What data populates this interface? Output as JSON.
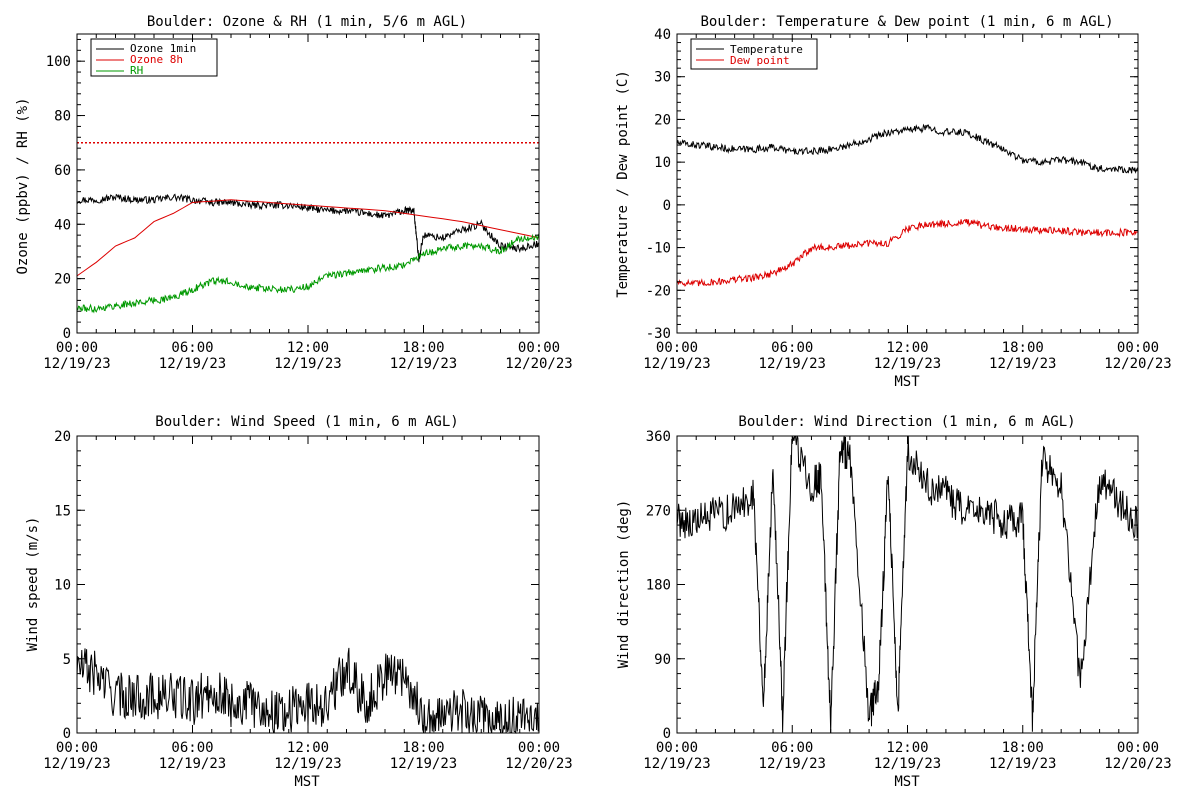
{
  "chart_data": [
    {
      "type": "line",
      "title": "Boulder: Ozone & RH (1 min, 5/6 m AGL)",
      "xlabel": "",
      "ylabel": "Ozone (ppbv) / RH (%)",
      "xlim": [
        "12/19/23 00:00",
        "12/20/23 00:00"
      ],
      "ylim": [
        0,
        110
      ],
      "y_ticks": [
        0,
        20,
        40,
        60,
        80,
        100
      ],
      "x_tick_labels": [
        [
          "00:00",
          "12/19/23"
        ],
        [
          "06:00",
          "12/19/23"
        ],
        [
          "12:00",
          "12/19/23"
        ],
        [
          "18:00",
          "12/19/23"
        ],
        [
          "00:00",
          "12/20/23"
        ]
      ],
      "legend": {
        "placement": "top-left",
        "entries": [
          "Ozone 1min",
          "Ozone 8h",
          "RH"
        ]
      },
      "reference_line": {
        "y": 70,
        "style": "dotted",
        "color": "#dd0000"
      },
      "series": [
        {
          "name": "Ozone 1min",
          "color": "#000000",
          "x": [
            "12/19/23 00:00",
            "12/19/23 01:00",
            "12/19/23 02:00",
            "12/19/23 03:00",
            "12/19/23 04:00",
            "12/19/23 05:00",
            "12/19/23 06:00",
            "12/19/23 07:00",
            "12/19/23 08:00",
            "12/19/23 09:00",
            "12/19/23 10:00",
            "12/19/23 11:00",
            "12/19/23 12:00",
            "12/19/23 13:00",
            "12/19/23 14:00",
            "12/19/23 15:00",
            "12/19/23 16:00",
            "12/19/23 17:00",
            "12/19/23 17:30",
            "12/19/23 17:45",
            "12/19/23 18:00",
            "12/19/23 19:00",
            "12/19/23 20:00",
            "12/19/23 21:00",
            "12/19/23 22:00",
            "12/19/23 23:00",
            "12/20/23 00:00"
          ],
          "y": [
            49,
            49,
            50,
            49,
            49,
            50,
            49,
            48,
            48,
            47,
            47,
            47,
            46,
            45,
            45,
            44,
            43,
            45,
            45,
            27,
            36,
            35,
            38,
            40,
            32,
            31,
            33
          ]
        },
        {
          "name": "Ozone 8h",
          "color": "#dd0000",
          "x": [
            "12/19/23 00:00",
            "12/19/23 01:00",
            "12/19/23 02:00",
            "12/19/23 03:00",
            "12/19/23 04:00",
            "12/19/23 05:00",
            "12/19/23 06:00",
            "12/19/23 08:00",
            "12/19/23 10:00",
            "12/19/23 12:00",
            "12/19/23 14:00",
            "12/19/23 16:00",
            "12/19/23 18:00",
            "12/19/23 20:00",
            "12/19/23 22:00",
            "12/20/23 00:00"
          ],
          "y": [
            21,
            26,
            32,
            35,
            41,
            44,
            48,
            49,
            48,
            47,
            46,
            45,
            43,
            41,
            38,
            35
          ]
        },
        {
          "name": "RH",
          "color": "#009900",
          "x": [
            "12/19/23 00:00",
            "12/19/23 01:00",
            "12/19/23 02:00",
            "12/19/23 03:00",
            "12/19/23 04:00",
            "12/19/23 05:00",
            "12/19/23 06:00",
            "12/19/23 07:00",
            "12/19/23 08:00",
            "12/19/23 09:00",
            "12/19/23 10:00",
            "12/19/23 11:00",
            "12/19/23 12:00",
            "12/19/23 13:00",
            "12/19/23 14:00",
            "12/19/23 15:00",
            "12/19/23 16:00",
            "12/19/23 17:00",
            "12/19/23 18:00",
            "12/19/23 19:00",
            "12/19/23 20:00",
            "12/19/23 21:00",
            "12/19/23 22:00",
            "12/19/23 23:00",
            "12/20/23 00:00"
          ],
          "y": [
            9,
            9,
            10,
            11,
            12,
            13,
            16,
            19,
            19,
            17,
            16,
            16,
            17,
            21,
            22,
            23,
            24,
            25,
            29,
            31,
            32,
            32,
            30,
            35,
            35
          ]
        }
      ]
    },
    {
      "type": "line",
      "title": "Boulder: Temperature & Dew point (1 min, 6 m AGL)",
      "xlabel": "MST",
      "ylabel": "Temperature / Dew point (C)",
      "xlim": [
        "12/19/23 00:00",
        "12/20/23 00:00"
      ],
      "ylim": [
        -30,
        40
      ],
      "y_ticks": [
        -30,
        -20,
        -10,
        0,
        10,
        20,
        30,
        40
      ],
      "x_tick_labels": [
        [
          "00:00",
          "12/19/23"
        ],
        [
          "06:00",
          "12/19/23"
        ],
        [
          "12:00",
          "12/19/23"
        ],
        [
          "18:00",
          "12/19/23"
        ],
        [
          "00:00",
          "12/20/23"
        ]
      ],
      "legend": {
        "placement": "top-left",
        "entries": [
          "Temperature",
          "Dew point"
        ]
      },
      "series": [
        {
          "name": "Temperature",
          "color": "#000000",
          "x": [
            "12/19/23 00:00",
            "12/19/23 01:00",
            "12/19/23 02:00",
            "12/19/23 03:00",
            "12/19/23 04:00",
            "12/19/23 05:00",
            "12/19/23 06:00",
            "12/19/23 07:00",
            "12/19/23 08:00",
            "12/19/23 09:00",
            "12/19/23 10:00",
            "12/19/23 11:00",
            "12/19/23 12:00",
            "12/19/23 13:00",
            "12/19/23 14:00",
            "12/19/23 15:00",
            "12/19/23 16:00",
            "12/19/23 17:00",
            "12/19/23 18:00",
            "12/19/23 19:00",
            "12/19/23 20:00",
            "12/19/23 21:00",
            "12/19/23 22:00",
            "12/19/23 23:00",
            "12/20/23 00:00"
          ],
          "y": [
            14.5,
            14,
            13.5,
            13,
            13,
            13.5,
            12.5,
            12.5,
            13,
            14,
            15.5,
            17,
            17.5,
            18,
            17,
            17,
            15,
            13,
            10.5,
            10,
            10.5,
            10,
            8.5,
            8.5,
            8
          ]
        },
        {
          "name": "Dew point",
          "color": "#dd0000",
          "x": [
            "12/19/23 00:00",
            "12/19/23 01:00",
            "12/19/23 02:00",
            "12/19/23 03:00",
            "12/19/23 04:00",
            "12/19/23 05:00",
            "12/19/23 06:00",
            "12/19/23 07:00",
            "12/19/23 08:00",
            "12/19/23 09:00",
            "12/19/23 10:00",
            "12/19/23 11:00",
            "12/19/23 12:00",
            "12/19/23 13:00",
            "12/19/23 14:00",
            "12/19/23 15:00",
            "12/19/23 16:00",
            "12/19/23 17:00",
            "12/19/23 18:00",
            "12/19/23 19:00",
            "12/19/23 20:00",
            "12/19/23 21:00",
            "12/19/23 22:00",
            "12/19/23 23:00",
            "12/20/23 00:00"
          ],
          "y": [
            -18,
            -18.5,
            -18,
            -17.5,
            -17,
            -16,
            -14,
            -10,
            -10,
            -9.5,
            -9,
            -9,
            -5.5,
            -4.5,
            -4.5,
            -4,
            -5,
            -5.5,
            -5.5,
            -6,
            -6,
            -6.5,
            -6.5,
            -6.5,
            -6.5
          ]
        }
      ]
    },
    {
      "type": "line",
      "title": "Boulder: Wind Speed (1 min, 6 m AGL)",
      "xlabel": "MST",
      "ylabel": "Wind speed (m/s)",
      "xlim": [
        "12/19/23 00:00",
        "12/20/23 00:00"
      ],
      "ylim": [
        0,
        20
      ],
      "y_ticks": [
        0,
        5,
        10,
        15,
        20
      ],
      "x_tick_labels": [
        [
          "00:00",
          "12/19/23"
        ],
        [
          "06:00",
          "12/19/23"
        ],
        [
          "12:00",
          "12/19/23"
        ],
        [
          "18:00",
          "12/19/23"
        ],
        [
          "00:00",
          "12/20/23"
        ]
      ],
      "series": [
        {
          "color": "#000000",
          "x": [
            "12/19/23 00:00",
            "12/19/23 01:00",
            "12/19/23 02:00",
            "12/19/23 03:00",
            "12/19/23 04:00",
            "12/19/23 05:00",
            "12/19/23 06:00",
            "12/19/23 07:00",
            "12/19/23 08:00",
            "12/19/23 09:00",
            "12/19/23 10:00",
            "12/19/23 11:00",
            "12/19/23 12:00",
            "12/19/23 13:00",
            "12/19/23 14:00",
            "12/19/23 15:00",
            "12/19/23 16:00",
            "12/19/23 17:00",
            "12/19/23 18:00",
            "12/19/23 19:00",
            "12/19/23 20:00",
            "12/19/23 21:00",
            "12/19/23 22:00",
            "12/19/23 23:00",
            "12/20/23 00:00"
          ],
          "y": [
            4.5,
            4,
            2.5,
            2.5,
            2.5,
            2.5,
            2,
            3,
            2,
            2,
            1.5,
            1.5,
            2,
            2,
            4.5,
            2,
            4,
            4,
            1,
            1,
            1.5,
            1,
            0.5,
            1,
            0.5
          ]
        }
      ]
    },
    {
      "type": "line",
      "title": "Boulder: Wind Direction (1 min, 6 m AGL)",
      "xlabel": "MST",
      "ylabel": "Wind direction (deg)",
      "xlim": [
        "12/19/23 00:00",
        "12/20/23 00:00"
      ],
      "ylim": [
        0,
        360
      ],
      "y_ticks": [
        0,
        90,
        180,
        270,
        360
      ],
      "x_tick_labels": [
        [
          "00:00",
          "12/19/23"
        ],
        [
          "06:00",
          "12/19/23"
        ],
        [
          "12:00",
          "12/19/23"
        ],
        [
          "18:00",
          "12/19/23"
        ],
        [
          "00:00",
          "12/20/23"
        ]
      ],
      "series": [
        {
          "color": "#000000",
          "x": [
            "12/19/23 00:00",
            "12/19/23 01:00",
            "12/19/23 02:00",
            "12/19/23 03:00",
            "12/19/23 04:00",
            "12/19/23 04:30",
            "12/19/23 05:00",
            "12/19/23 05:30",
            "12/19/23 06:00",
            "12/19/23 07:00",
            "12/19/23 07:30",
            "12/19/23 08:00",
            "12/19/23 08:30",
            "12/19/23 09:00",
            "12/19/23 10:00",
            "12/19/23 10:30",
            "12/19/23 11:00",
            "12/19/23 11:30",
            "12/19/23 12:00",
            "12/19/23 13:00",
            "12/19/23 14:00",
            "12/19/23 15:00",
            "12/19/23 16:00",
            "12/19/23 17:00",
            "12/19/23 18:00",
            "12/19/23 18:30",
            "12/19/23 19:00",
            "12/19/23 20:00",
            "12/19/23 21:00",
            "12/19/23 22:00",
            "12/19/23 23:00",
            "12/20/23 00:00"
          ],
          "y": [
            260,
            255,
            265,
            270,
            290,
            30,
            330,
            20,
            360,
            300,
            310,
            10,
            350,
            330,
            20,
            60,
            320,
            20,
            340,
            300,
            290,
            265,
            270,
            255,
            260,
            20,
            330,
            300,
            60,
            310,
            280,
            250
          ]
        }
      ]
    }
  ]
}
